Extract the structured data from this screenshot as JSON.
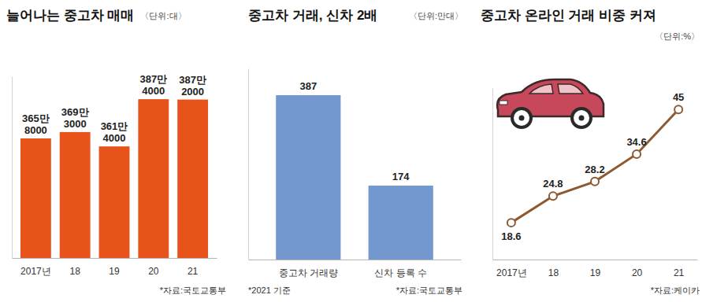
{
  "chart_data": [
    {
      "type": "bar",
      "title": "늘어나는 중고차 매매",
      "subtitle": "〈단위:대〉",
      "categories": [
        "2017년",
        "18",
        "19",
        "20",
        "21"
      ],
      "values": [
        3658000,
        3693000,
        3614000,
        3874000,
        3872000
      ],
      "value_labels": [
        "365만\n8000",
        "369만\n3000",
        "361만\n4000",
        "387만\n4000",
        "387만\n2000"
      ],
      "color": "#e8531c",
      "ylim": [
        3000000,
        4000000
      ],
      "data_labels": true,
      "tick_labels": "x",
      "annotations": [
        "*자료:국토교통부"
      ]
    },
    {
      "type": "bar",
      "title": "중고차 거래, 신차 2배",
      "subtitle": "〈단위:만대〉",
      "categories": [
        "중고차 거래량",
        "신차 등록 수"
      ],
      "values": [
        387,
        174
      ],
      "color": "#7398d0",
      "ylim": [
        0,
        450
      ],
      "data_labels": true,
      "tick_labels": "x",
      "annotations": [
        "*2021 기준",
        "*자료:국토교통부"
      ]
    },
    {
      "type": "line",
      "title": "중고차 온라인 거래 비중 커져",
      "subtitle": "〈단위:%〉",
      "categories": [
        "2017년",
        "18",
        "19",
        "20",
        "21"
      ],
      "values": [
        18.6,
        24.8,
        28.2,
        34.6,
        45
      ],
      "color": "#8b5a33",
      "marker": "circle",
      "ylim": [
        10,
        50
      ],
      "data_labels": true,
      "tick_labels": "x",
      "annotations": [
        "*자료:케이카"
      ]
    }
  ]
}
